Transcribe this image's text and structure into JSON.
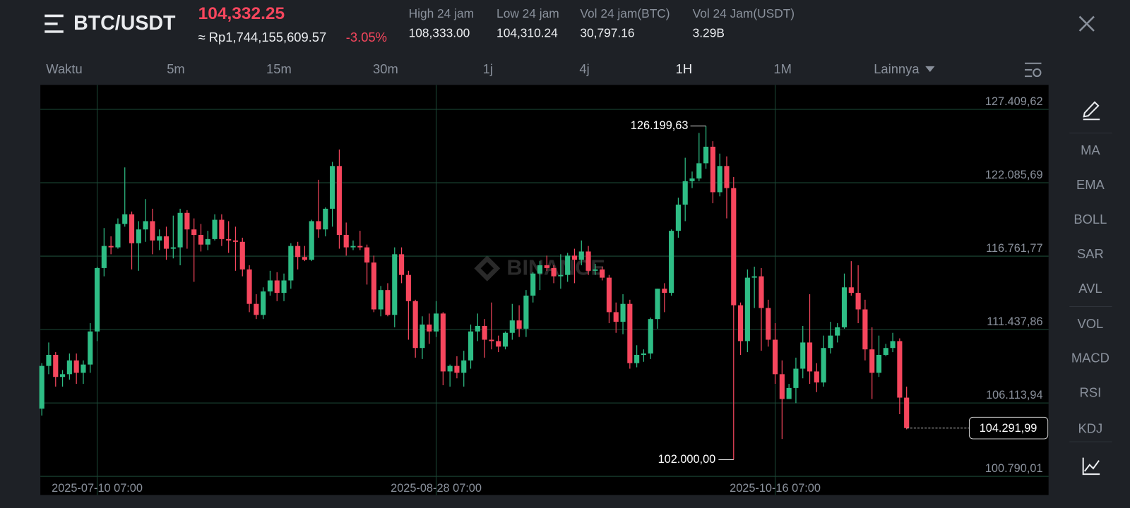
{
  "header": {
    "pair": "BTC/USDT",
    "last_price": "104,332.25",
    "fiat_price": "≈ Rp1,744,155,609.57",
    "change": "-3.05%",
    "stats": [
      {
        "label": "High 24 jam",
        "value": "108,333.00"
      },
      {
        "label": "Low 24 jam",
        "value": "104,310.24"
      },
      {
        "label": "Vol 24 jam(BTC)",
        "value": "30,797.16"
      },
      {
        "label": "Vol 24 Jam(USDT)",
        "value": "3.29B"
      }
    ]
  },
  "toolbar": {
    "timeframes": [
      "Waktu",
      "5m",
      "15m",
      "30m",
      "1j",
      "4j",
      "1H",
      "1M"
    ],
    "more": "Lainnya"
  },
  "indicators": [
    "MA",
    "EMA",
    "BOLL",
    "SAR",
    "AVL",
    "VOL",
    "MACD",
    "RSI",
    "KDJ"
  ],
  "chart_data": {
    "type": "candlestick",
    "watermark": "BINANCE",
    "up_color": "#2ebd85",
    "down_color": "#f6465d",
    "grid": true,
    "categories": [
      null,
      null,
      null,
      null,
      null,
      null,
      null,
      null,
      "2025-07-10 07:00",
      null,
      null,
      null,
      null,
      null,
      null,
      null,
      null,
      null,
      null,
      null,
      null,
      null,
      null,
      null,
      null,
      null,
      null,
      null,
      null,
      null,
      null,
      null,
      null,
      null,
      null,
      null,
      null,
      null,
      null,
      null,
      null,
      null,
      null,
      null,
      null,
      null,
      null,
      null,
      null,
      null,
      null,
      null,
      null,
      null,
      null,
      null,
      null,
      "2025-08-28 07:00",
      null,
      null,
      null,
      null,
      null,
      null,
      null,
      null,
      null,
      null,
      null,
      null,
      null,
      null,
      null,
      null,
      null,
      null,
      null,
      null,
      null,
      null,
      null,
      null,
      null,
      null,
      null,
      null,
      null,
      null,
      null,
      null,
      null,
      null,
      null,
      null,
      null,
      null,
      null,
      null,
      null,
      null,
      null,
      null,
      null,
      null,
      null,
      null,
      "2025-10-16 07:00",
      null,
      null,
      null,
      null,
      null,
      null,
      null,
      null,
      null,
      null,
      null,
      null,
      null,
      null,
      null,
      null,
      null,
      null,
      null
    ],
    "open": [
      105700,
      108800,
      109600,
      108000,
      108200,
      109200,
      108300,
      108900,
      111300,
      115900,
      117500,
      117400,
      119100,
      119800,
      117700,
      118700,
      119300,
      117900,
      118200,
      117300,
      117400,
      119900,
      118700,
      118300,
      117600,
      118000,
      119400,
      118000,
      117900,
      117800,
      115800,
      113300,
      112500,
      114200,
      115000,
      114100,
      115000,
      117500,
      116700,
      116500,
      119300,
      118700,
      120200,
      123300,
      118300,
      117400,
      117500,
      117400,
      116300,
      112900,
      114300,
      112500,
      116900,
      115400,
      113500,
      110100,
      111800,
      111300,
      112600,
      108400,
      108800,
      108300,
      109200,
      111300,
      111700,
      110700,
      110600,
      110200,
      111200,
      112100,
      111500,
      113900,
      115500,
      116100,
      115900,
      115300,
      115400,
      116800,
      116500,
      117100,
      115700,
      115800,
      115200,
      112700,
      112000,
      113300,
      109000,
      109600,
      109700,
      112200,
      114400,
      114100,
      118600,
      120500,
      122200,
      122400,
      123500,
      124700,
      121400,
      123300,
      121700,
      113200,
      110600,
      115200,
      115300,
      113000,
      110700,
      108200,
      106400,
      107200,
      108600,
      110500,
      108400,
      107600,
      110100,
      111000,
      111600,
      114500,
      114100,
      112900,
      110000,
      108300,
      109600,
      110100,
      110600,
      106500
    ],
    "high": [
      109000,
      110500,
      109800,
      108500,
      109700,
      109700,
      109200,
      111900,
      116000,
      118800,
      118200,
      119500,
      123200,
      120000,
      119300,
      120900,
      120200,
      118700,
      118900,
      119700,
      120200,
      120100,
      119500,
      119100,
      118600,
      119800,
      119800,
      119300,
      118900,
      118100,
      116100,
      114000,
      114500,
      115700,
      115600,
      115500,
      117700,
      117800,
      117500,
      119400,
      122300,
      120300,
      123600,
      124500,
      119200,
      117900,
      118600,
      117600,
      116800,
      114600,
      114800,
      117400,
      117400,
      115700,
      113600,
      112400,
      112600,
      113500,
      112700,
      108900,
      109500,
      109900,
      111800,
      112600,
      112200,
      113400,
      111000,
      111300,
      113300,
      113200,
      114300,
      115600,
      116400,
      116800,
      116100,
      116900,
      117000,
      117300,
      117900,
      117500,
      116200,
      116000,
      115400,
      113400,
      114000,
      113600,
      110300,
      110000,
      112300,
      114400,
      114800,
      118700,
      121000,
      123900,
      122900,
      125700,
      126199.63,
      125100,
      124200,
      124000,
      122500,
      113400,
      115800,
      116000,
      115900,
      113600,
      111900,
      109200,
      107500,
      109400,
      111700,
      114000,
      109000,
      111000,
      112000,
      111900,
      115500,
      116400,
      116100,
      113600,
      111600,
      111000,
      110400,
      111200,
      110800,
      107300
    ],
    "low": [
      105200,
      108200,
      107300,
      107300,
      107800,
      107500,
      107500,
      108300,
      110600,
      115300,
      116900,
      117300,
      118900,
      115800,
      115700,
      117800,
      116900,
      117200,
      116500,
      116600,
      116100,
      117300,
      114900,
      117100,
      117200,
      117900,
      117500,
      117000,
      115700,
      115300,
      112700,
      112200,
      112200,
      113900,
      113500,
      113500,
      114400,
      115800,
      116400,
      116400,
      118100,
      118200,
      118900,
      117300,
      116800,
      117200,
      117200,
      114700,
      112700,
      112400,
      112400,
      111600,
      114800,
      110700,
      109400,
      109300,
      110400,
      110900,
      107400,
      107300,
      107900,
      107300,
      108600,
      110600,
      109400,
      110000,
      109800,
      110000,
      110700,
      110900,
      110900,
      113400,
      114300,
      115700,
      114800,
      114400,
      114900,
      114800,
      116100,
      115400,
      115400,
      115000,
      111900,
      111200,
      111100,
      108600,
      108700,
      109100,
      109300,
      111500,
      112700,
      113900,
      118100,
      119300,
      121700,
      122200,
      123100,
      120600,
      121100,
      119500,
      102000,
      109600,
      109800,
      113000,
      109900,
      110200,
      107500,
      103500,
      106400,
      106100,
      107900,
      107500,
      106900,
      107300,
      109700,
      110500,
      111500,
      113900,
      111900,
      109200,
      106400,
      108000,
      109500,
      109800,
      105300,
      104200
    ],
    "close": [
      108800,
      109600,
      108000,
      108200,
      109200,
      108300,
      108900,
      111300,
      115900,
      117500,
      117400,
      119100,
      119800,
      117700,
      118700,
      119300,
      117900,
      118200,
      117300,
      117400,
      119900,
      118700,
      118300,
      117600,
      118000,
      119400,
      118000,
      117900,
      117800,
      115800,
      113300,
      112500,
      114200,
      115000,
      114100,
      115000,
      117500,
      116700,
      116500,
      119300,
      118700,
      120200,
      123300,
      118300,
      117400,
      117500,
      117400,
      116300,
      112900,
      114300,
      112500,
      116900,
      115400,
      113500,
      110100,
      111800,
      111300,
      112600,
      108400,
      108800,
      108300,
      109200,
      111300,
      111700,
      110700,
      110600,
      110200,
      111200,
      112100,
      111500,
      113900,
      115500,
      116100,
      115900,
      115300,
      115400,
      116800,
      116500,
      117100,
      115700,
      115800,
      115200,
      112700,
      112000,
      113300,
      109000,
      109600,
      109700,
      112200,
      114400,
      114100,
      118600,
      120500,
      122200,
      122400,
      123500,
      124700,
      121400,
      123300,
      121700,
      113200,
      110600,
      115200,
      115300,
      113000,
      110700,
      108200,
      106400,
      107200,
      108600,
      110500,
      108400,
      107600,
      110100,
      111000,
      111600,
      114500,
      114100,
      112900,
      110000,
      108300,
      109600,
      110100,
      110600,
      106500,
      104291.99
    ],
    "ylim": [
      99433,
      129184
    ],
    "yticks": [
      {
        "value": 127409.62,
        "label": "127.409,62"
      },
      {
        "value": 122085.69,
        "label": "122.085,69"
      },
      {
        "value": 116761.77,
        "label": "116.761,77"
      },
      {
        "value": 111437.86,
        "label": "111.437,86"
      },
      {
        "value": 106113.94,
        "label": "106.113,94"
      },
      {
        "value": 100790.01,
        "label": "100.790,01"
      }
    ],
    "last_price": {
      "value": 104291.99,
      "label": "104.291,99"
    },
    "high_marker": {
      "value": 126199.63,
      "label": "126.199,63"
    },
    "low_marker": {
      "value": 102000.0,
      "label": "102.000,00"
    }
  }
}
